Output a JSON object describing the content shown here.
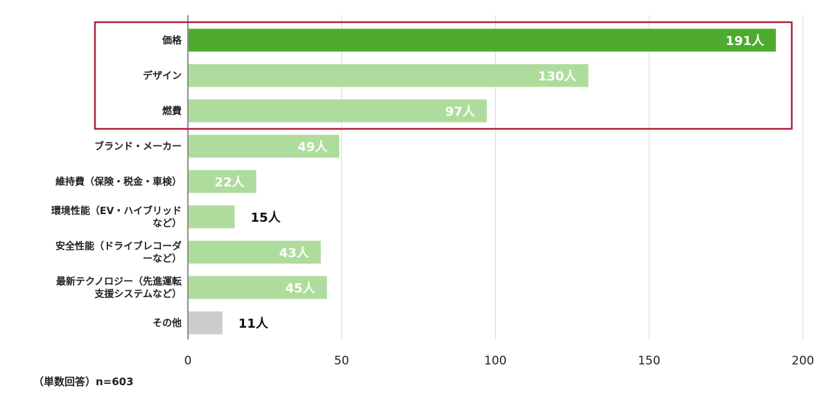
{
  "chart_data": {
    "type": "bar",
    "orientation": "horizontal",
    "categories": [
      [
        "価格"
      ],
      [
        "デザイン"
      ],
      [
        "燃費"
      ],
      [
        "ブランド・メーカー"
      ],
      [
        "維持費（保険・税金・車検）"
      ],
      [
        "環境性能（EV・ハイブリッド",
        "など）"
      ],
      [
        "安全性能（ドライブレコーダ",
        "ーなど）"
      ],
      [
        "最新テクノロジー（先進運転",
        "支援システムなど）"
      ],
      [
        "その他"
      ]
    ],
    "values": [
      191,
      130,
      97,
      49,
      22,
      15,
      43,
      45,
      11
    ],
    "value_labels": [
      "191人",
      "130人",
      "97人",
      "49人",
      "22人",
      "15人",
      "43人",
      "45人",
      "11人"
    ],
    "xlim": [
      0,
      200
    ],
    "xticks": [
      "0",
      "50",
      "100",
      "150",
      "200"
    ],
    "grid": true,
    "highlight_box_categories": [
      "価格",
      "デザイン",
      "燃費"
    ],
    "colors": {
      "top_bar": "#4eab2d",
      "bar": "#aedc9c",
      "other_bar": "#cdcbcd",
      "highlight_box": "#b0213a",
      "grid": "#d9d9d9",
      "label_inside": "#ffffff",
      "label_outside": "#111111"
    }
  },
  "footnote": "（単数回答）n=603"
}
